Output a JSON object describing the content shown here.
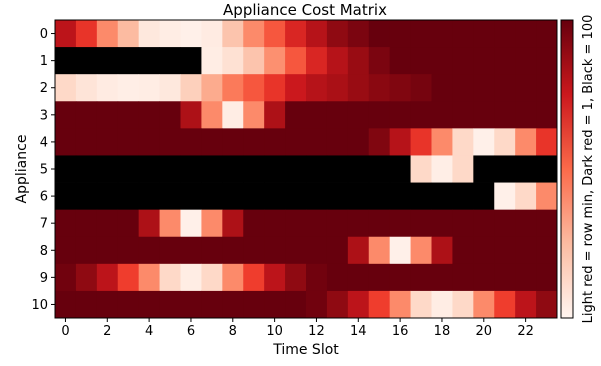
{
  "chart_data": {
    "type": "heatmap",
    "title": "Appliance Cost Matrix",
    "xlabel": "Time Slot",
    "ylabel": "Appliance",
    "colorbar_label": "Light red = row min, Dark red = 1, Black = 100",
    "x_ticks": [
      "0",
      "2",
      "4",
      "6",
      "8",
      "10",
      "12",
      "14",
      "16",
      "18",
      "20",
      "22"
    ],
    "x_tick_values": [
      0,
      2,
      4,
      6,
      8,
      10,
      12,
      14,
      16,
      18,
      20,
      22
    ],
    "rows": [
      "0",
      "1",
      "2",
      "3",
      "4",
      "5",
      "6",
      "7",
      "8",
      "9",
      "10"
    ],
    "columns": 24,
    "colormap": "Reds",
    "colors": {
      "min": "#fff5f0",
      "mid": "#fb6a4a",
      "max": "#67000d",
      "black": "#000000"
    },
    "values": [
      [
        0.8,
        0.65,
        0.4,
        0.25,
        0.08,
        0.05,
        0.03,
        0.06,
        0.22,
        0.4,
        0.55,
        0.7,
        0.82,
        0.92,
        0.96,
        1,
        1,
        1,
        1,
        1,
        1,
        1,
        1,
        1
      ],
      [
        100,
        100,
        100,
        100,
        100,
        100,
        100,
        0.05,
        0.12,
        0.22,
        0.38,
        0.55,
        0.7,
        0.82,
        0.9,
        0.96,
        1,
        1,
        1,
        1,
        1,
        1,
        1,
        1
      ],
      [
        0.15,
        0.1,
        0.06,
        0.04,
        0.05,
        0.08,
        0.18,
        0.3,
        0.45,
        0.55,
        0.65,
        0.75,
        0.82,
        0.86,
        0.9,
        0.93,
        0.95,
        0.97,
        1,
        1,
        1,
        1,
        1,
        1
      ],
      [
        1,
        1,
        1,
        1,
        1,
        1,
        0.85,
        0.4,
        0.05,
        0.4,
        0.85,
        1,
        1,
        1,
        1,
        1,
        1,
        1,
        1,
        1,
        1,
        1,
        1,
        1
      ],
      [
        1,
        1,
        1,
        1,
        1,
        1,
        1,
        1,
        1,
        1,
        1,
        1,
        1,
        1,
        1,
        0.95,
        0.82,
        0.65,
        0.4,
        0.15,
        0.03,
        0.15,
        0.4,
        0.65
      ],
      [
        100,
        100,
        100,
        100,
        100,
        100,
        100,
        100,
        100,
        100,
        100,
        100,
        100,
        100,
        100,
        100,
        100,
        0.15,
        0.04,
        0.15,
        100,
        100,
        100,
        100
      ],
      [
        100,
        100,
        100,
        100,
        100,
        100,
        100,
        100,
        100,
        100,
        100,
        100,
        100,
        100,
        100,
        100,
        100,
        100,
        100,
        100,
        100,
        0.03,
        0.15,
        0.4
      ],
      [
        1,
        1,
        1,
        1,
        0.85,
        0.4,
        0.03,
        0.4,
        0.85,
        1,
        1,
        1,
        1,
        1,
        1,
        1,
        1,
        1,
        1,
        1,
        1,
        1,
        1,
        1
      ],
      [
        1,
        1,
        1,
        1,
        1,
        1,
        1,
        1,
        1,
        1,
        1,
        1,
        1,
        1,
        0.85,
        0.4,
        0.03,
        0.4,
        0.85,
        1,
        1,
        1,
        1,
        1
      ],
      [
        0.98,
        0.92,
        0.8,
        0.62,
        0.4,
        0.15,
        0.05,
        0.15,
        0.4,
        0.62,
        0.8,
        0.92,
        0.98,
        1,
        1,
        1,
        1,
        1,
        1,
        1,
        1,
        1,
        1,
        1
      ],
      [
        1,
        1,
        1,
        1,
        1,
        1,
        1,
        1,
        1,
        1,
        1,
        1,
        0.98,
        0.92,
        0.8,
        0.62,
        0.4,
        0.15,
        0.05,
        0.15,
        0.4,
        0.62,
        0.8,
        0.92
      ]
    ]
  }
}
